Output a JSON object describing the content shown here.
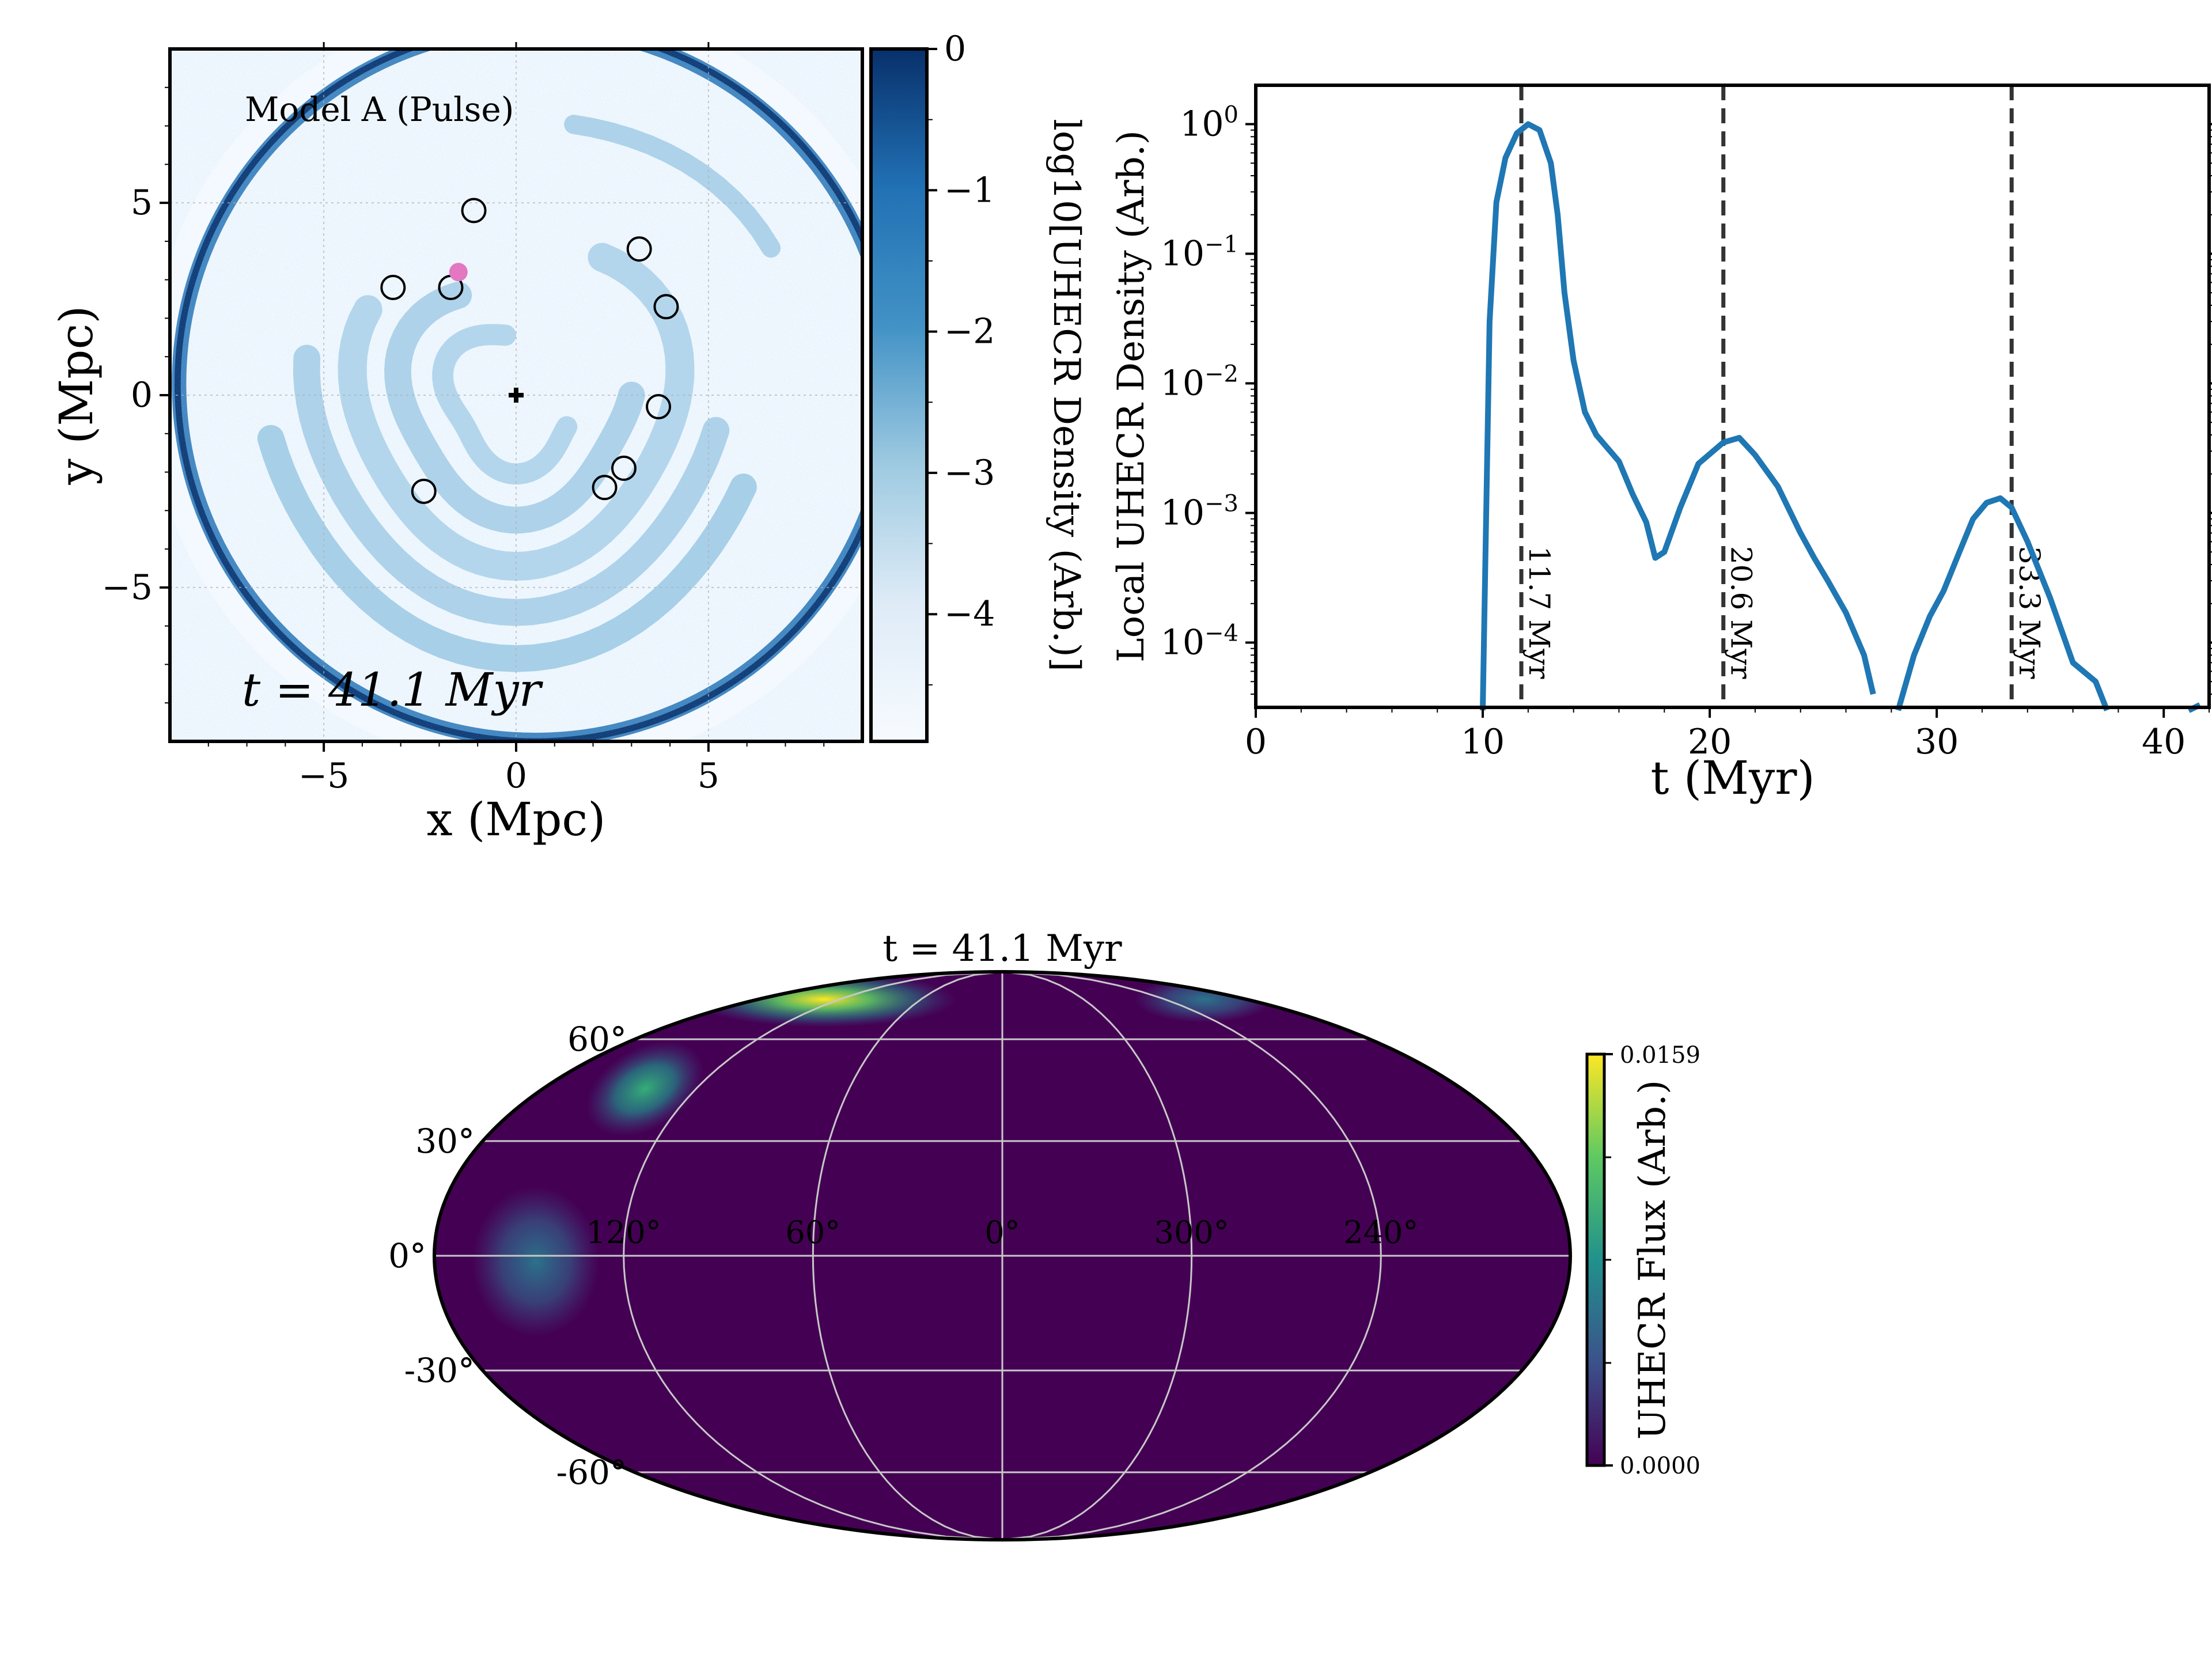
{
  "chart_data": [
    {
      "type": "heatmap",
      "panel": "density-map",
      "label": "Model A (Pulse)",
      "time_label": "t = 41.1 Myr",
      "xlabel": "x (Mpc)",
      "ylabel": "y (Mpc)",
      "xlim": [
        -9,
        9
      ],
      "ylim": [
        -9,
        9
      ],
      "xticks": [
        -5,
        0,
        5
      ],
      "yticks": [
        -5,
        0,
        5
      ],
      "xtick_labels": [
        "−5",
        "0",
        "5"
      ],
      "ytick_labels": [
        "−5",
        "0",
        "5"
      ],
      "grid": true,
      "colormap": "Blues",
      "colorbar": {
        "label": "log10[UHECR Density (Arb.)]",
        "range": [
          -4.9,
          0
        ],
        "ticks": [
          0,
          -1,
          -2,
          -3,
          -4
        ],
        "tick_labels": [
          "0",
          "−1",
          "−2",
          "−3",
          "−4"
        ]
      },
      "observer": {
        "x": 0,
        "y": 0,
        "marker": "plus"
      },
      "pink_source": {
        "x": -1.5,
        "y": 3.2,
        "color": "#e377c2"
      },
      "sources": [
        {
          "x": -1.1,
          "y": 4.8
        },
        {
          "x": -3.2,
          "y": 2.8
        },
        {
          "x": -1.7,
          "y": 2.8
        },
        {
          "x": 3.2,
          "y": 3.8
        },
        {
          "x": 3.9,
          "y": 2.3
        },
        {
          "x": 3.7,
          "y": -0.3
        },
        {
          "x": 2.8,
          "y": -1.9
        },
        {
          "x": 2.3,
          "y": -2.4
        },
        {
          "x": -2.4,
          "y": -2.5
        }
      ]
    },
    {
      "type": "line",
      "panel": "density-time-series",
      "xlabel": "t (Myr)",
      "ylabel": "Local UHECR Density (Arb.)",
      "xlim": [
        0,
        42
      ],
      "ylim_log10": [
        -4.5,
        0.3
      ],
      "yscale": "log",
      "xticks": [
        0,
        10,
        20,
        30,
        40
      ],
      "yticks_log10": [
        0,
        -1,
        -2,
        -3,
        -4
      ],
      "ytick_labels": [
        "10^0",
        "10^−1",
        "10^−2",
        "10^−3",
        "10^−4"
      ],
      "color": "#1f77b4",
      "series": [
        {
          "x": [
            10.0,
            10.3,
            10.6,
            11.0,
            11.5,
            12.0,
            12.5,
            13.0,
            13.3,
            13.6,
            14.0,
            14.5,
            15.0,
            16.0,
            16.6,
            17.2,
            17.6,
            18.0,
            18.7,
            19.5,
            20.6,
            21.3,
            22.0,
            23.0,
            24.0,
            24.6,
            25.2,
            26.0,
            26.8,
            27.2
          ],
          "y": [
            3e-05,
            0.03,
            0.25,
            0.55,
            0.85,
            1.0,
            0.9,
            0.5,
            0.2,
            0.05,
            0.015,
            0.006,
            0.004,
            0.0025,
            0.0014,
            0.00085,
            0.00045,
            0.0005,
            0.0011,
            0.0024,
            0.0035,
            0.0038,
            0.0028,
            0.0016,
            0.0007,
            0.00045,
            0.0003,
            0.00017,
            8e-05,
            4e-05
          ]
        },
        {
          "x": [
            28.3,
            29.0,
            29.7,
            30.3,
            31.0,
            31.6,
            32.2,
            32.8,
            33.3,
            34.0,
            35.0,
            36.0,
            37.0,
            37.5
          ],
          "y": [
            3e-05,
            8e-05,
            0.00016,
            0.00025,
            0.0005,
            0.0009,
            0.0012,
            0.0013,
            0.0011,
            0.0006,
            0.00022,
            7e-05,
            5e-05,
            3e-05
          ]
        },
        {
          "x": [
            41.1,
            41.6
          ],
          "y": [
            3e-05,
            3.3e-05
          ]
        }
      ],
      "vlines": [
        {
          "x": 11.7,
          "label": "11.7 Myr"
        },
        {
          "x": 20.6,
          "label": "20.6 Myr"
        },
        {
          "x": 33.3,
          "label": "33.3 Myr"
        }
      ]
    },
    {
      "type": "heatmap",
      "panel": "sky-map",
      "projection": "mollweide",
      "title": "t = 41.1 Myr",
      "lat_labels": [
        "60°",
        "30°",
        "0°",
        "-30°",
        "-60°"
      ],
      "lon_labels": [
        "120°",
        "60°",
        "0°",
        "300°",
        "240°"
      ],
      "colormap": "viridis",
      "colorbar": {
        "label": "UHECR Flux (Arb.)",
        "min_label": "0.0000",
        "max_label": "0.0159"
      },
      "hotspots": [
        {
          "lon": 110,
          "lat": 68,
          "flux": 0.0159
        },
        {
          "lon": 160,
          "lat": 35,
          "flux": 0.0095
        },
        {
          "lon": 170,
          "lat": 0,
          "flux": 0.0065
        },
        {
          "lon": 285,
          "lat": 70,
          "flux": 0.0065
        }
      ]
    }
  ]
}
